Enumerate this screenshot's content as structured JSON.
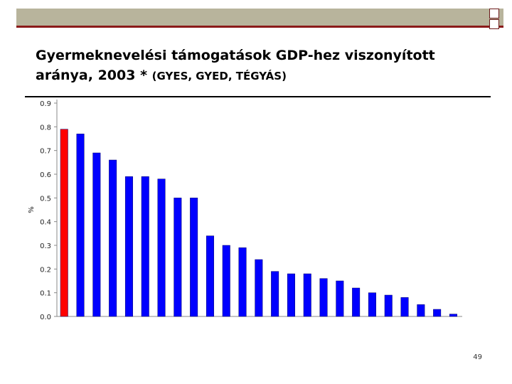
{
  "slide": {
    "title_main": "Gyermeknevelési támogatások GDP-hez viszonyított aránya, 2003 *",
    "title_sub": "(GYES, GYED, TÉGYÁS)",
    "page_number": "49"
  },
  "colors": {
    "highlight_bar": "#ff0000",
    "bar": "#0000ff",
    "top_bar": "#b8b49c",
    "accent_line": "#8b1a1a"
  },
  "chart_data": {
    "type": "bar",
    "ylabel": "%",
    "ylim": [
      0,
      0.9
    ],
    "yticks": [
      "0.0",
      "0.1",
      "0.2",
      "0.3",
      "0.4",
      "0.5",
      "0.6",
      "0.7",
      "0.8",
      "0.9"
    ],
    "grid": false,
    "values": [
      0.79,
      0.77,
      0.69,
      0.66,
      0.59,
      0.59,
      0.58,
      0.5,
      0.5,
      0.34,
      0.3,
      0.29,
      0.24,
      0.19,
      0.18,
      0.18,
      0.16,
      0.15,
      0.12,
      0.1,
      0.09,
      0.08,
      0.05,
      0.03,
      0.01
    ],
    "highlight_index": 0
  }
}
